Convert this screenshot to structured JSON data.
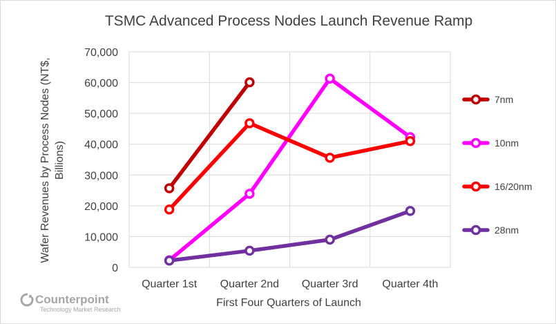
{
  "chart_data": {
    "type": "line",
    "title": "TSMC Advanced Process Nodes Launch Revenue Ramp",
    "xlabel": "First Four Quarters of Launch",
    "ylabel_line1": "Wafer Revenues by Process Nodes (NT$,",
    "ylabel_line2": "Billions)",
    "categories": [
      "Quarter 1st",
      "Quarter 2nd",
      "Quarter 3rd",
      "Quarter 4th"
    ],
    "ylim": [
      0,
      70000
    ],
    "yticks": [
      "0",
      "10,000",
      "20,000",
      "30,000",
      "40,000",
      "50,000",
      "60,000",
      "70,000"
    ],
    "grid": true,
    "legend_position": "right",
    "series": [
      {
        "name": "7nm",
        "color": "#c00000",
        "values": [
          25700,
          60100,
          null,
          null
        ]
      },
      {
        "name": "10nm",
        "color": "#ff00ff",
        "values": [
          2300,
          23900,
          61300,
          42300
        ]
      },
      {
        "name": "16/20nm",
        "color": "#ff0000",
        "values": [
          18800,
          46800,
          35600,
          41000
        ]
      },
      {
        "name": "28nm",
        "color": "#7030a0",
        "values": [
          2200,
          5400,
          9000,
          18300
        ]
      }
    ]
  },
  "watermark": {
    "brand": "Counterpoint",
    "tagline": "Technology Market Research"
  }
}
